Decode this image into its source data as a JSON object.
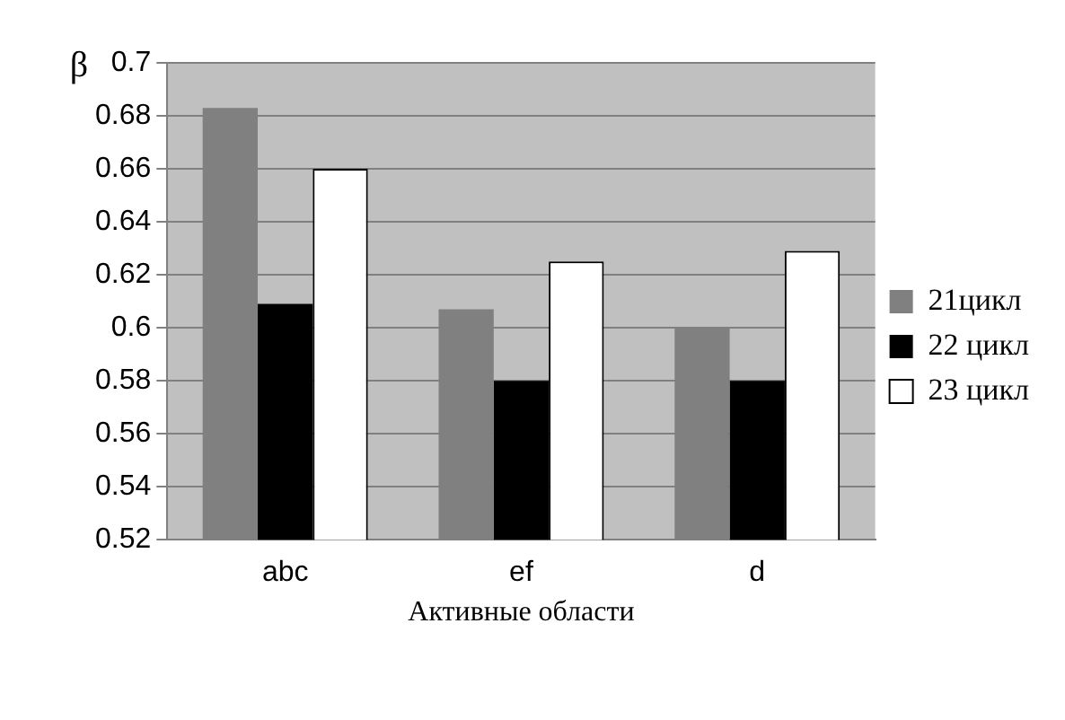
{
  "chart_data": {
    "type": "bar",
    "xlabel": "Активные области",
    "ylabel": "β",
    "categories": [
      "abc",
      "ef",
      "d"
    ],
    "series": [
      {
        "name": "21цикл",
        "color": "#808080",
        "values": [
          0.683,
          0.607,
          0.6
        ]
      },
      {
        "name": "22 цикл",
        "color": "#000000",
        "values": [
          0.609,
          0.58,
          0.58
        ]
      },
      {
        "name": "23 цикл",
        "color": "#ffffff",
        "values": [
          0.66,
          0.625,
          0.629
        ]
      }
    ],
    "ylim": [
      0.52,
      0.7
    ],
    "yticks": [
      0.52,
      0.54,
      0.56,
      0.58,
      0.6,
      0.62,
      0.64,
      0.66,
      0.68,
      {
        "value": 0.7,
        "label": "0.7"
      }
    ],
    "grid": "y",
    "legend": "right"
  }
}
